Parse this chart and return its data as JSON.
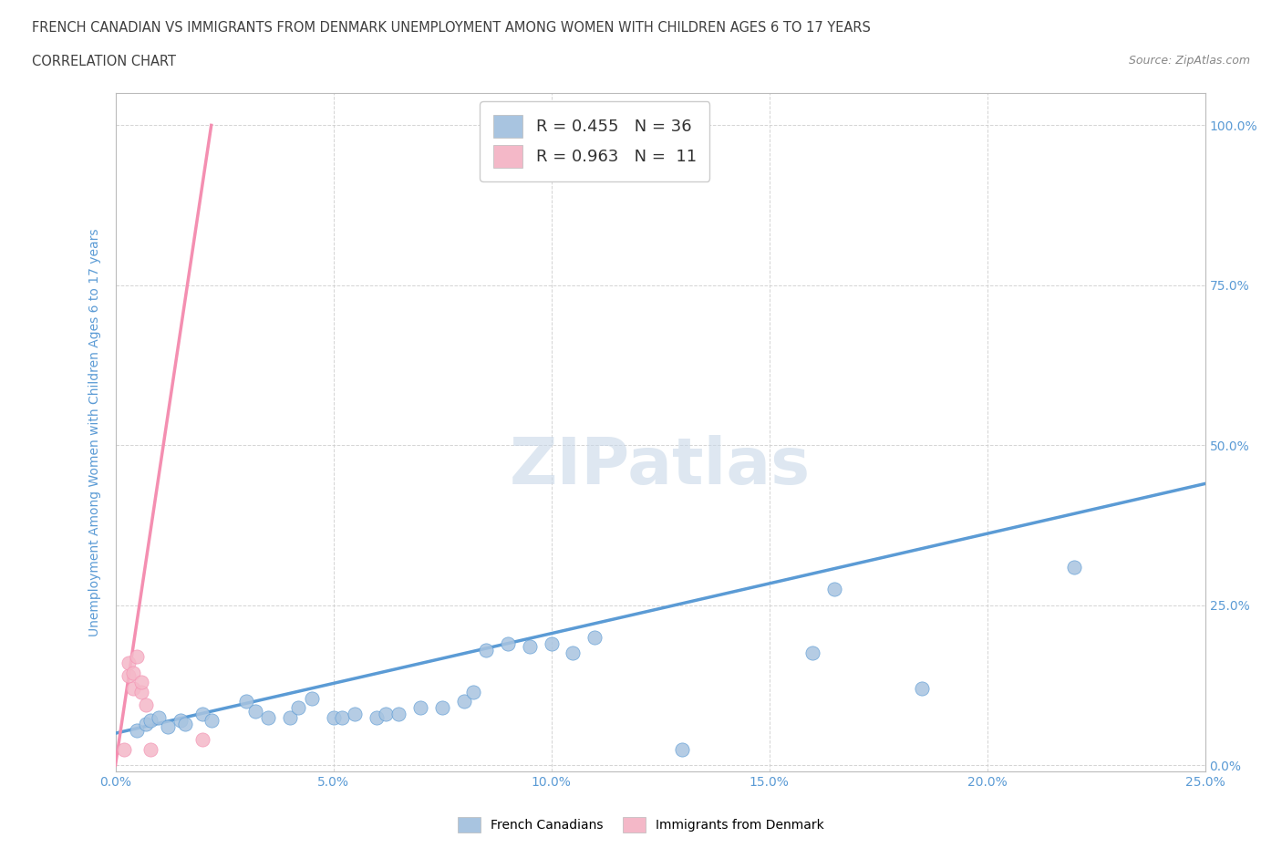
{
  "title_line1": "FRENCH CANADIAN VS IMMIGRANTS FROM DENMARK UNEMPLOYMENT AMONG WOMEN WITH CHILDREN AGES 6 TO 17 YEARS",
  "title_line2": "CORRELATION CHART",
  "source_text": "Source: ZipAtlas.com",
  "ylabel_label": "Unemployment Among Women with Children Ages 6 to 17 years",
  "xlim": [
    0.0,
    0.25
  ],
  "ylim": [
    -0.01,
    1.05
  ],
  "x_ticks": [
    0.0,
    0.05,
    0.1,
    0.15,
    0.2,
    0.25
  ],
  "y_ticks": [
    0.0,
    0.25,
    0.5,
    0.75,
    1.0
  ],
  "legend_entries": [
    {
      "label": "R = 0.455   N = 36",
      "color": "#a8c4e0"
    },
    {
      "label": "R = 0.963   N =  11",
      "color": "#f4b8c8"
    }
  ],
  "legend_bottom": [
    {
      "label": "French Canadians",
      "color": "#a8c4e0"
    },
    {
      "label": "Immigrants from Denmark",
      "color": "#f4b8c8"
    }
  ],
  "blue_scatter": [
    [
      0.005,
      0.055
    ],
    [
      0.007,
      0.065
    ],
    [
      0.008,
      0.07
    ],
    [
      0.01,
      0.075
    ],
    [
      0.012,
      0.06
    ],
    [
      0.015,
      0.07
    ],
    [
      0.016,
      0.065
    ],
    [
      0.02,
      0.08
    ],
    [
      0.022,
      0.07
    ],
    [
      0.03,
      0.1
    ],
    [
      0.032,
      0.085
    ],
    [
      0.035,
      0.075
    ],
    [
      0.04,
      0.075
    ],
    [
      0.042,
      0.09
    ],
    [
      0.045,
      0.105
    ],
    [
      0.05,
      0.075
    ],
    [
      0.052,
      0.075
    ],
    [
      0.055,
      0.08
    ],
    [
      0.06,
      0.075
    ],
    [
      0.062,
      0.08
    ],
    [
      0.065,
      0.08
    ],
    [
      0.07,
      0.09
    ],
    [
      0.075,
      0.09
    ],
    [
      0.08,
      0.1
    ],
    [
      0.082,
      0.115
    ],
    [
      0.085,
      0.18
    ],
    [
      0.09,
      0.19
    ],
    [
      0.095,
      0.185
    ],
    [
      0.1,
      0.19
    ],
    [
      0.105,
      0.175
    ],
    [
      0.11,
      0.2
    ],
    [
      0.13,
      0.025
    ],
    [
      0.16,
      0.175
    ],
    [
      0.165,
      0.275
    ],
    [
      0.185,
      0.12
    ],
    [
      0.22,
      0.31
    ]
  ],
  "pink_scatter": [
    [
      0.002,
      0.025
    ],
    [
      0.003,
      0.14
    ],
    [
      0.003,
      0.16
    ],
    [
      0.004,
      0.12
    ],
    [
      0.004,
      0.145
    ],
    [
      0.005,
      0.17
    ],
    [
      0.006,
      0.115
    ],
    [
      0.006,
      0.13
    ],
    [
      0.007,
      0.095
    ],
    [
      0.008,
      0.025
    ],
    [
      0.02,
      0.04
    ]
  ],
  "blue_line_x": [
    0.0,
    0.25
  ],
  "blue_line_y": [
    0.05,
    0.44
  ],
  "pink_line_x": [
    0.0,
    0.022
  ],
  "pink_line_y": [
    0.0,
    1.0
  ],
  "blue_scatter_color": "#a8c4e0",
  "pink_scatter_color": "#f4b8c8",
  "blue_line_color": "#5b9bd5",
  "pink_line_color": "#f48fb1",
  "grid_color": "#d0d0d0",
  "bg_color": "#ffffff",
  "watermark_color": "#c8d8e8",
  "title_color": "#404040",
  "axis_label_color": "#5b9bd5",
  "tick_label_color": "#5b9bd5"
}
